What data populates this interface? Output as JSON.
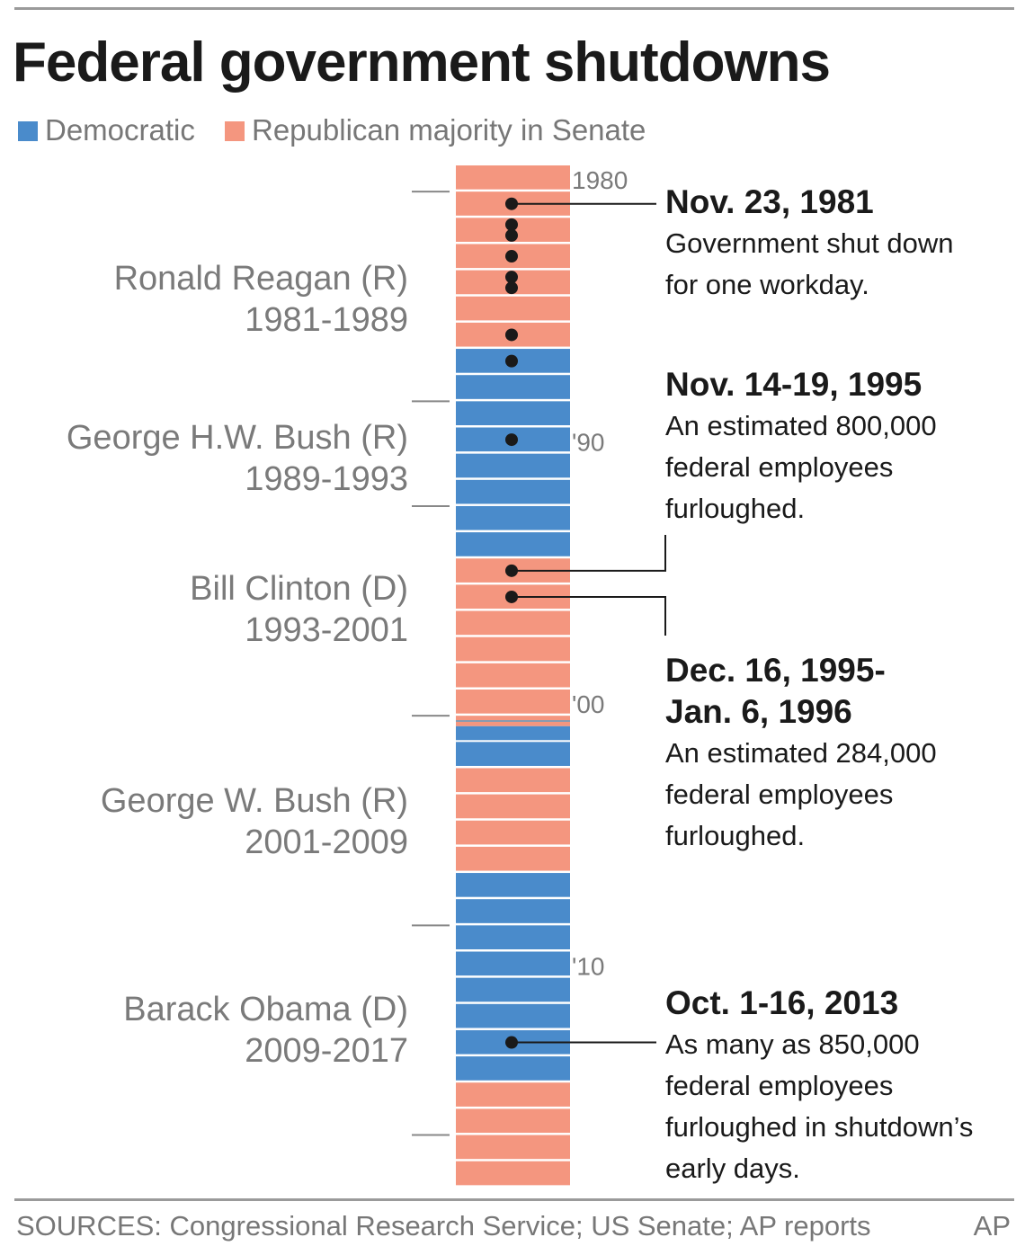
{
  "title": "Federal government shutdowns",
  "legend": {
    "democratic": "Democratic",
    "republican": "Republican majority in Senate"
  },
  "colors": {
    "democratic": "#4a8bcb",
    "republican": "#f4967f",
    "dot": "#1a1a1a"
  },
  "presidents": [
    {
      "name": "Ronald Reagan (R)",
      "years": "1981-1989"
    },
    {
      "name": "George H.W. Bush (R)",
      "years": "1989-1993"
    },
    {
      "name": "Bill Clinton (D)",
      "years": "1993-2001"
    },
    {
      "name": "George W. Bush  (R)",
      "years": "2001-2009"
    },
    {
      "name": "Barack Obama  (D)",
      "years": "2009-2017"
    }
  ],
  "annotations": [
    {
      "date": "Nov. 23, 1981",
      "lines": [
        "Government shut down",
        "for one workday."
      ]
    },
    {
      "date": "Nov. 14-19, 1995",
      "lines": [
        "An estimated 800,000",
        "federal employees",
        "furloughed."
      ]
    },
    {
      "date_lines": [
        "Dec. 16, 1995-",
        "Jan. 6, 1996"
      ],
      "lines": [
        "An estimated 284,000",
        "federal employees",
        "furloughed."
      ]
    },
    {
      "date": "Oct. 1-16, 2013",
      "lines": [
        "As many as 850,000",
        "federal employees",
        "furloughed in shutdown’s",
        "early days."
      ]
    }
  ],
  "chart_data": {
    "type": "timeline",
    "title": "Federal government shutdowns",
    "year_range": [
      1980,
      2018
    ],
    "year_tick_labels": [
      {
        "year": 1980,
        "label": "1980"
      },
      {
        "year": 1990,
        "label": "'90"
      },
      {
        "year": 2000,
        "label": "'00"
      },
      {
        "year": 2010,
        "label": "'10"
      }
    ],
    "term_start_ticks": [
      1981,
      1989,
      1993,
      2001,
      2009,
      2017
    ],
    "senate_majority": {
      "1980": "R",
      "1981": "R",
      "1982": "R",
      "1983": "R",
      "1984": "R",
      "1985": "R",
      "1986": "R",
      "1987": "D",
      "1988": "D",
      "1989": "D",
      "1990": "D",
      "1991": "D",
      "1992": "D",
      "1993": "D",
      "1994": "D",
      "1995": "R",
      "1996": "R",
      "1997": "R",
      "1998": "R",
      "1999": "R",
      "2000": "R",
      "2001": "mixed",
      "2002": "D",
      "2003": "R",
      "2004": "R",
      "2005": "R",
      "2006": "R",
      "2007": "D",
      "2008": "D",
      "2009": "D",
      "2010": "D",
      "2011": "D",
      "2012": "D",
      "2013": "D",
      "2014": "D",
      "2015": "R",
      "2016": "R",
      "2017": "R",
      "2018": "R"
    },
    "shutdowns_per_year": {
      "1981": 1,
      "1982": 2,
      "1983": 1,
      "1984": 2,
      "1986": 1,
      "1987": 1,
      "1990": 1,
      "1995": 1,
      "1996": 1,
      "2013": 1
    }
  },
  "footer": {
    "sources": "SOURCES: Congressional Research Service; US Senate; AP reports",
    "credit": "AP"
  }
}
